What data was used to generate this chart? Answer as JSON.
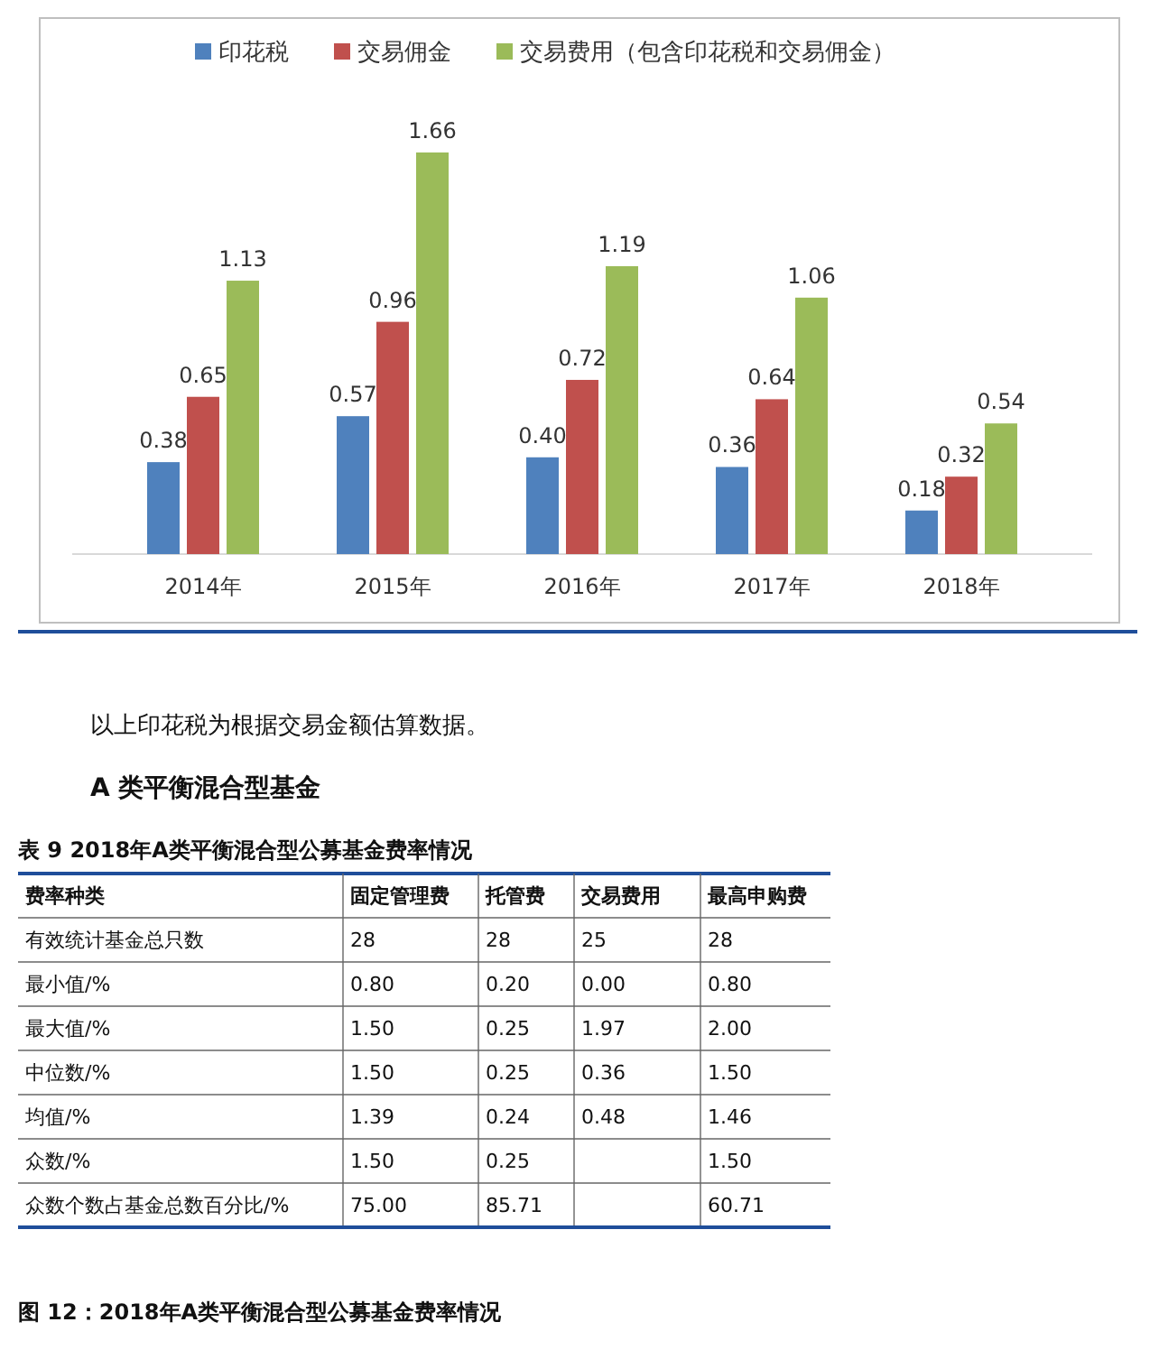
{
  "chart_data": [
    {
      "type": "bar",
      "categories": [
        "2014年",
        "2015年",
        "2016年",
        "2017年",
        "2018年"
      ],
      "legend": "top",
      "series": [
        {
          "name": "印花税",
          "color": "#4f81bd",
          "values": [
            0.38,
            0.57,
            0.4,
            0.36,
            0.18
          ],
          "value_labels": [
            "0.38",
            "0.57",
            "0.40",
            "0.36",
            "0.18"
          ]
        },
        {
          "name": "交易佣金",
          "color": "#c0504d",
          "values": [
            0.65,
            0.96,
            0.72,
            0.64,
            0.32
          ],
          "value_labels": [
            "0.65",
            "0.96",
            "0.72",
            "0.64",
            "0.32"
          ]
        },
        {
          "name": "交易费用（包含印花税和交易佣金）",
          "color": "#9bbb59",
          "values": [
            1.13,
            1.66,
            1.19,
            1.06,
            0.54
          ],
          "value_labels": [
            "1.13",
            "1.66",
            "1.19",
            "1.06",
            "0.54"
          ]
        }
      ]
    },
    {
      "type": "other",
      "title": "表 9 2018年A类平衡混合型公募基金费率情况",
      "annotations": [
        "以上印花税为根据交易金额估算数据。",
        "A 类平衡混合型基金",
        "图 12：2018年A类平衡混合型公募基金费率情况"
      ],
      "categories": [
        "费率种类",
        "固定管理费",
        "托管费",
        "交易费用",
        "最高申购费"
      ],
      "y_categories": [
        "有效统计基金总只数",
        "最小值/%",
        "最大值/%",
        "中位数/%",
        "均值/%",
        "众数/%",
        "众数个数占基金总数百分比/%"
      ],
      "cell_labels": [
        [
          "28",
          "28",
          "25",
          "28"
        ],
        [
          "0.80",
          "0.20",
          "0.00",
          "0.80"
        ],
        [
          "1.50",
          "0.25",
          "1.97",
          "2.00"
        ],
        [
          "1.50",
          "0.25",
          "0.36",
          "1.50"
        ],
        [
          "1.39",
          "0.24",
          "0.48",
          "1.46"
        ],
        [
          "1.50",
          "0.25",
          null,
          "1.50"
        ],
        [
          "75.00",
          "85.71",
          null,
          "60.71"
        ]
      ]
    }
  ]
}
